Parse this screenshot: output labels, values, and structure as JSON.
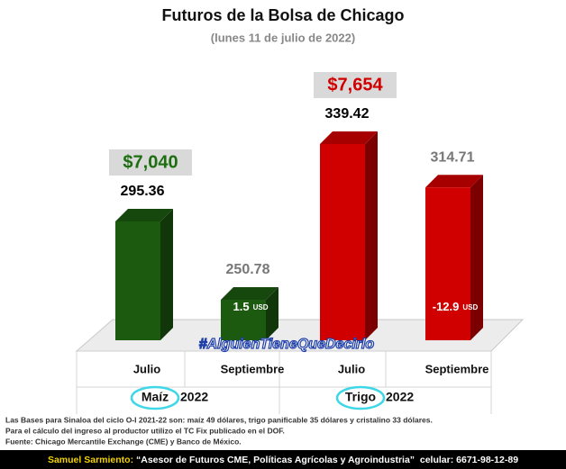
{
  "chart_data": {
    "type": "bar3d",
    "title": "Futuros de la Bolsa de Chicago",
    "subtitle": "(lunes 11 de julio de 2022)",
    "categories": [
      "Julio",
      "Septiembre",
      "Julio",
      "Septiembre"
    ],
    "values": [
      295.36,
      250.78,
      339.42,
      314.71
    ],
    "colors": [
      "#1c5a10",
      "#1c5a10",
      "#d10000",
      "#d10000"
    ],
    "label_colors": [
      "#000000",
      "#777777",
      "#000000",
      "#777777"
    ],
    "bar_notes": [
      null,
      "1.5",
      null,
      "-12.9"
    ],
    "bar_note_unit": "USD",
    "groups": [
      {
        "name": "Maíz",
        "year": "2022",
        "price": "$7,040",
        "price_color": "#1c6e10"
      },
      {
        "name": "Trigo",
        "year": "2022",
        "price": "$7,654",
        "price_color": "#d10000"
      }
    ],
    "watermark": "#AlguienTieneQueDecirlo",
    "notes": [
      "Las Bases para Sinaloa del ciclo O-I 2021-22 son: maíz 49 dólares, trigo panificable 35 dólares y cristalino 33 dólares.",
      "Para el cálculo del ingreso al productor utilizo el TC Fix publicado en el DOF.",
      "Fuente: Chicago Mercantile Exchange (CME) y Banco de México."
    ],
    "footer": {
      "name": "Samuel Sarmiento:",
      "text": " “Asesor de Futuros CME, Políticas Agrícolas y Agroindustria”  celular: 6671-98-12-89"
    }
  }
}
